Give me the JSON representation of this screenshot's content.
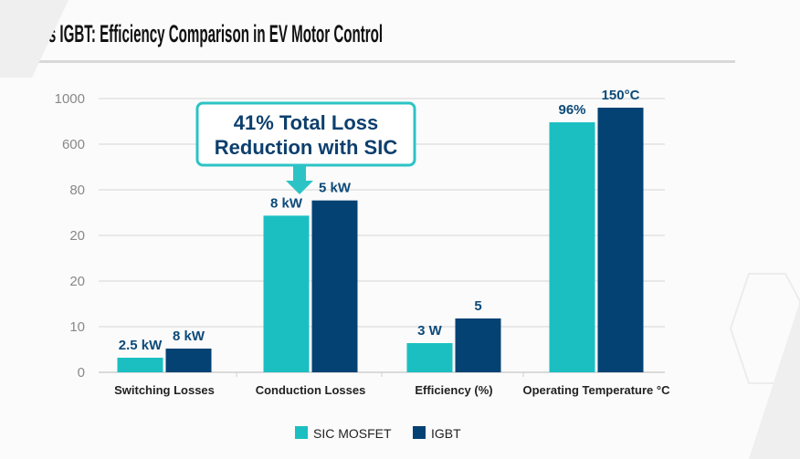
{
  "chart_data": {
    "type": "bar",
    "title": "SiC vs IGBT: Efficiency Comparison in EV Motor Control",
    "xlabel": "",
    "ylabel": "",
    "y_ticks": [
      "0",
      "10",
      "20",
      "20",
      "80",
      "600",
      "1000"
    ],
    "y_tick_values": [
      0,
      10,
      20,
      20,
      80,
      600,
      1000
    ],
    "grid": true,
    "legend_placement": "bottom",
    "categories": [
      "Switching Losses",
      "Conduction Losses",
      "Efficiency (%)",
      "Operating Temperature °C"
    ],
    "series": [
      {
        "name": "SIC MOSFET",
        "color": "#1bbfc2",
        "values": [
          3.2,
          46,
          6.4,
          792
        ],
        "labels": [
          "2.5 kW",
          "8 kW",
          "3 W",
          "96%"
        ]
      },
      {
        "name": "IGBT",
        "color": "#044273",
        "values": [
          5.2,
          66,
          11.8,
          920
        ],
        "labels": [
          "8 kW",
          "5 kW",
          "5",
          "150°C"
        ]
      }
    ],
    "annotation": {
      "lines": [
        "41% Total Loss",
        "Reduction with SIC"
      ],
      "border_color": "#2cc3c6",
      "target_category": "Conduction Losses"
    }
  }
}
